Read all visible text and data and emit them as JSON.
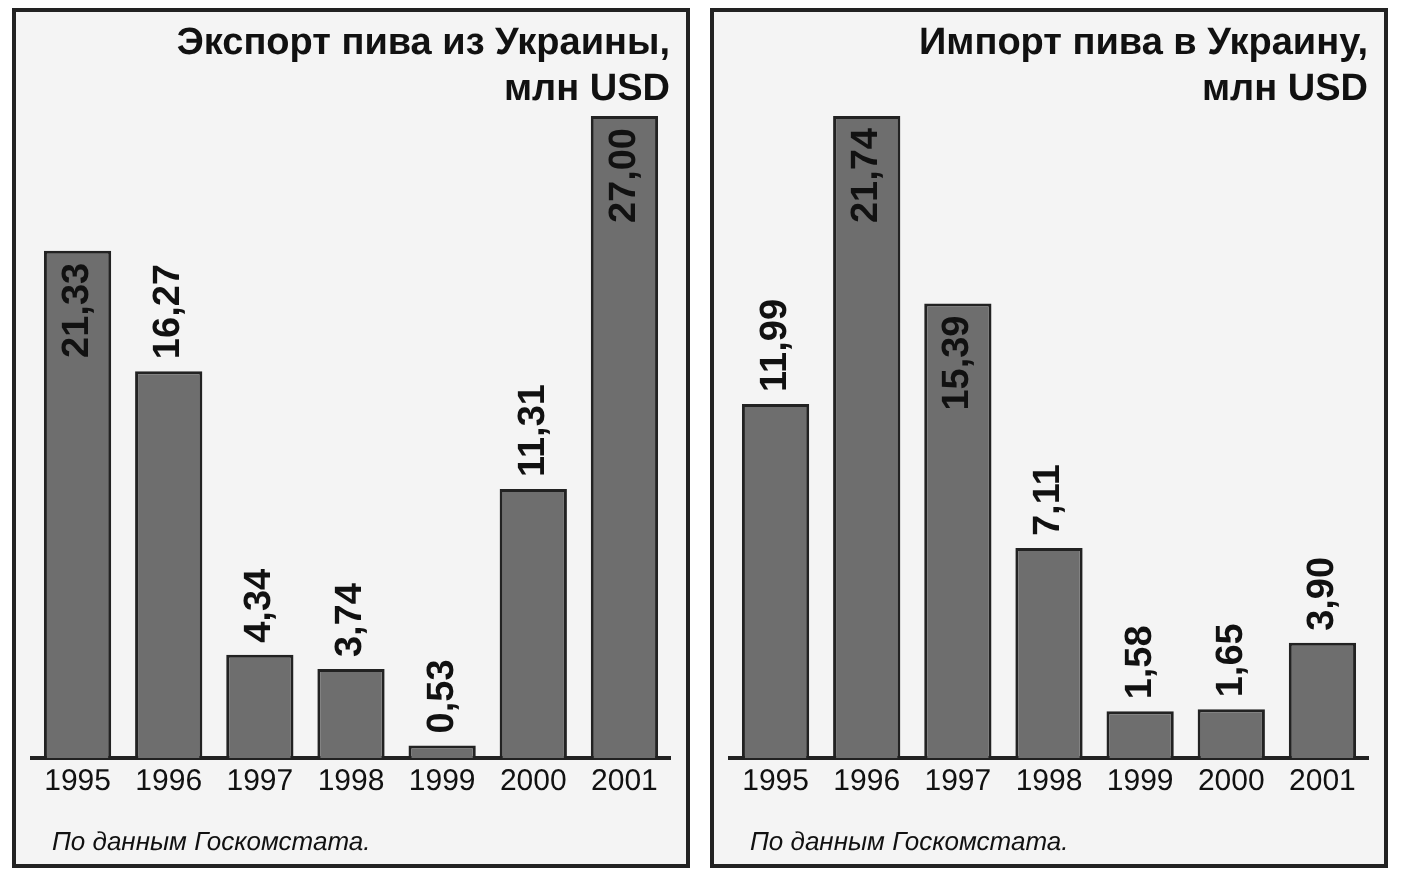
{
  "chart_data": [
    {
      "type": "bar",
      "title": "Экспорт пива из Украины, млн USD",
      "categories": [
        "1995",
        "1996",
        "1997",
        "1998",
        "1999",
        "2000",
        "2001"
      ],
      "values": [
        21.33,
        16.27,
        4.34,
        3.74,
        0.53,
        11.31,
        27.0
      ],
      "value_labels": [
        "21,33",
        "16,27",
        "4,34",
        "3,74",
        "0,53",
        "11,31",
        "27,00"
      ],
      "color": "#6e6e6e",
      "annotations": [
        "По данным Госкомстата."
      ]
    },
    {
      "type": "bar",
      "title": "Импорт пива в Украину, млн USD",
      "categories": [
        "1995",
        "1996",
        "1997",
        "1998",
        "1999",
        "2000",
        "2001"
      ],
      "values": [
        11.99,
        21.74,
        15.39,
        7.11,
        1.58,
        1.65,
        3.9
      ],
      "value_labels": [
        "11,99",
        "21,74",
        "15,39",
        "7,11",
        "1,58",
        "1,65",
        "3,90"
      ],
      "color": "#6e6e6e",
      "annotations": [
        "По данным Госкомстата."
      ]
    }
  ]
}
